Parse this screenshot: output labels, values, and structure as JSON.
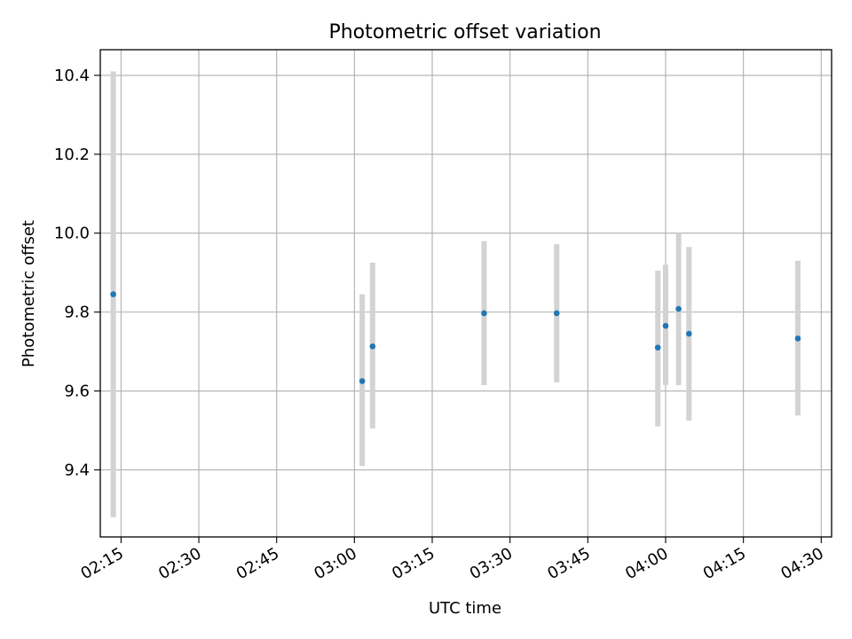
{
  "chart_data": {
    "type": "scatter",
    "title": "Photometric offset variation",
    "xlabel": "UTC time",
    "ylabel": "Photometric offset",
    "grid": true,
    "xlim": [
      "02:11",
      "04:32"
    ],
    "ylim": [
      9.23,
      10.465
    ],
    "x_tick_labels": [
      "02:15",
      "02:30",
      "02:45",
      "03:00",
      "03:15",
      "03:30",
      "03:45",
      "04:00",
      "04:15",
      "04:30"
    ],
    "y_tick_labels": [
      "9.4",
      "9.6",
      "9.8",
      "10.0",
      "10.2",
      "10.4"
    ],
    "point_color": "#1f77b4",
    "errorbar_color": "#d3d3d3",
    "points": [
      {
        "time": "02:13:30",
        "value": 9.845,
        "low": 9.28,
        "high": 10.41
      },
      {
        "time": "03:01:30",
        "value": 9.625,
        "low": 9.41,
        "high": 9.845
      },
      {
        "time": "03:03:30",
        "value": 9.713,
        "low": 9.505,
        "high": 9.925
      },
      {
        "time": "03:25:00",
        "value": 9.797,
        "low": 9.615,
        "high": 9.98
      },
      {
        "time": "03:39:00",
        "value": 9.797,
        "low": 9.622,
        "high": 9.972
      },
      {
        "time": "03:58:30",
        "value": 9.71,
        "low": 9.51,
        "high": 9.905
      },
      {
        "time": "04:00:00",
        "value": 9.765,
        "low": 9.615,
        "high": 9.92
      },
      {
        "time": "04:02:30",
        "value": 9.808,
        "low": 9.615,
        "high": 10.0
      },
      {
        "time": "04:04:30",
        "value": 9.745,
        "low": 9.525,
        "high": 9.965
      },
      {
        "time": "04:25:30",
        "value": 9.733,
        "low": 9.538,
        "high": 9.93
      }
    ]
  }
}
